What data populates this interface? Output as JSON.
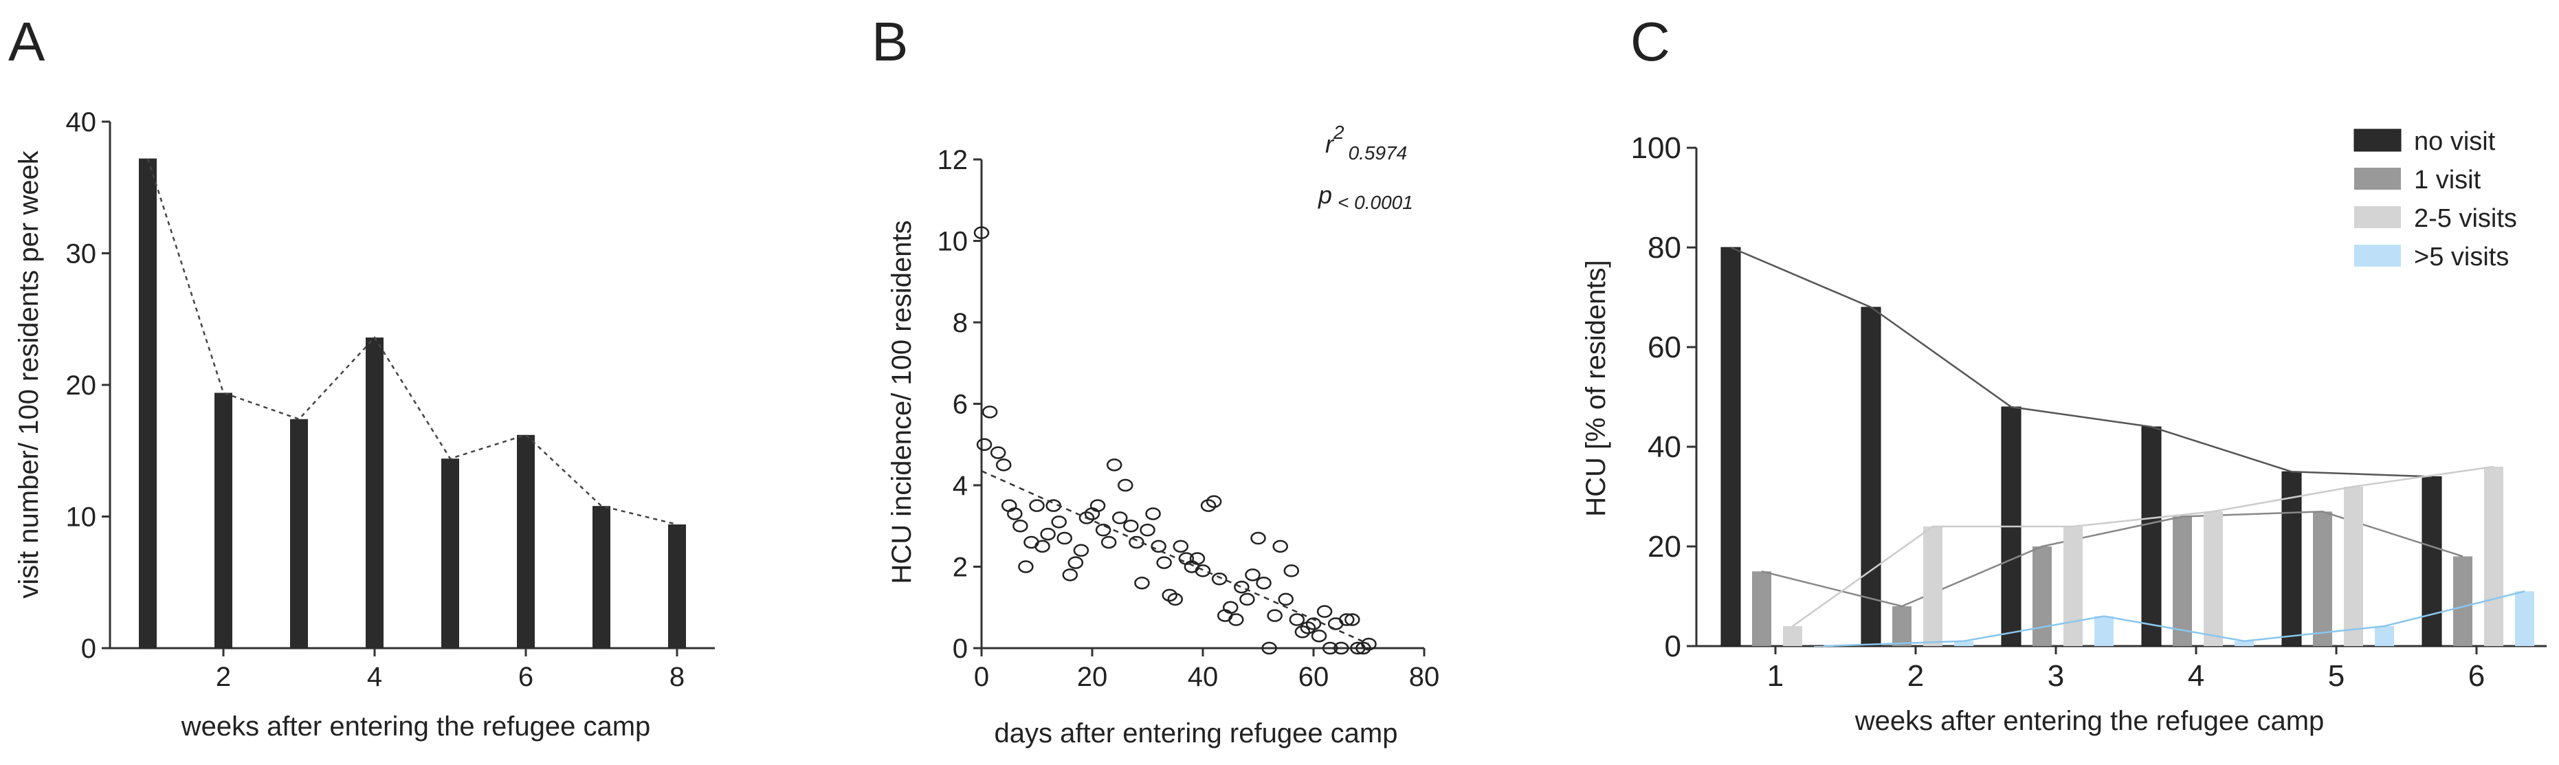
{
  "panels": [
    {
      "letter": "A"
    },
    {
      "letter": "B"
    },
    {
      "letter": "C"
    }
  ],
  "chart_data": [
    {
      "type": "bar",
      "panel": "A",
      "x": [
        1,
        2,
        3,
        4,
        5,
        6,
        7,
        8
      ],
      "values": [
        37.2,
        19.4,
        17.4,
        23.6,
        14.4,
        16.2,
        10.8,
        9.4
      ],
      "connector_line": "dashed",
      "xlabel": "weeks after entering the refugee camp",
      "ylabel": "visit number/ 100 residents per week",
      "xticks": [
        2,
        4,
        6,
        8
      ],
      "yticks": [
        0,
        10,
        20,
        30,
        40
      ],
      "xlim": [
        0.5,
        8.5
      ],
      "ylim": [
        0,
        40
      ],
      "bar_color": "#2b2b2b",
      "grid": false
    },
    {
      "type": "scatter",
      "panel": "B",
      "xlabel": "days after entering refugee camp",
      "ylabel": "HCU incidence/ 100 residents",
      "xticks": [
        0,
        20,
        40,
        60,
        80
      ],
      "yticks": [
        0,
        2,
        4,
        6,
        8,
        10,
        12
      ],
      "xlim": [
        0,
        80
      ],
      "ylim": [
        0,
        12
      ],
      "annotations": {
        "r2_symbol": "r",
        "r2_exp": "2",
        "r2_value": "0.5974",
        "p_symbol": "p",
        "p_value": "< 0.0001"
      },
      "regression": {
        "x": [
          0,
          70
        ],
        "y": [
          4.35,
          0.1
        ],
        "style": "dashed"
      },
      "points": [
        [
          0,
          10.2
        ],
        [
          0.5,
          5.0
        ],
        [
          1.5,
          5.8
        ],
        [
          3,
          4.8
        ],
        [
          4,
          4.5
        ],
        [
          5,
          3.5
        ],
        [
          6,
          3.3
        ],
        [
          7,
          3.0
        ],
        [
          8,
          2.0
        ],
        [
          9,
          2.6
        ],
        [
          10,
          3.5
        ],
        [
          11,
          2.5
        ],
        [
          12,
          2.8
        ],
        [
          13,
          3.5
        ],
        [
          14,
          3.1
        ],
        [
          15,
          2.7
        ],
        [
          16,
          1.8
        ],
        [
          17,
          2.1
        ],
        [
          18,
          2.4
        ],
        [
          19,
          3.2
        ],
        [
          20,
          3.3
        ],
        [
          21,
          3.5
        ],
        [
          22,
          2.9
        ],
        [
          23,
          2.6
        ],
        [
          24,
          4.5
        ],
        [
          25,
          3.2
        ],
        [
          26,
          4.0
        ],
        [
          27,
          3.0
        ],
        [
          28,
          2.6
        ],
        [
          29,
          1.6
        ],
        [
          30,
          2.9
        ],
        [
          31,
          3.3
        ],
        [
          32,
          2.5
        ],
        [
          33,
          2.1
        ],
        [
          34,
          1.3
        ],
        [
          35,
          1.2
        ],
        [
          36,
          2.5
        ],
        [
          37,
          2.2
        ],
        [
          38,
          2.0
        ],
        [
          39,
          2.2
        ],
        [
          40,
          1.9
        ],
        [
          41,
          3.5
        ],
        [
          42,
          3.6
        ],
        [
          43,
          1.7
        ],
        [
          44,
          0.8
        ],
        [
          45,
          1.0
        ],
        [
          46,
          0.7
        ],
        [
          47,
          1.5
        ],
        [
          48,
          1.2
        ],
        [
          49,
          1.8
        ],
        [
          50,
          2.7
        ],
        [
          51,
          1.6
        ],
        [
          52,
          0.0
        ],
        [
          53,
          0.8
        ],
        [
          54,
          2.5
        ],
        [
          55,
          1.2
        ],
        [
          56,
          1.9
        ],
        [
          57,
          0.7
        ],
        [
          58,
          0.4
        ],
        [
          59,
          0.5
        ],
        [
          60,
          0.6
        ],
        [
          61,
          0.3
        ],
        [
          62,
          0.9
        ],
        [
          63,
          0.0
        ],
        [
          64,
          0.6
        ],
        [
          65,
          0.0
        ],
        [
          66,
          0.7
        ],
        [
          67,
          0.7
        ],
        [
          68,
          0.0
        ],
        [
          69,
          0.0
        ],
        [
          70,
          0.1
        ]
      ],
      "grid": false
    },
    {
      "type": "bar",
      "panel": "C",
      "categories": [
        "1",
        "2",
        "3",
        "4",
        "5",
        "6"
      ],
      "xlabel": "weeks after entering the refugee camp",
      "ylabel": "HCU [% of residents]",
      "yticks": [
        0,
        20,
        40,
        60,
        80,
        100
      ],
      "ylim": [
        0,
        100
      ],
      "legend_position": "top-right",
      "series": [
        {
          "name": "no visit",
          "color": "#2b2b2b",
          "line": "#555555",
          "values": [
            80,
            68,
            48,
            44,
            35,
            34
          ]
        },
        {
          "name": "1 visit",
          "color": "#999999",
          "line": "#888888",
          "values": [
            15,
            8,
            20,
            26,
            27,
            18
          ]
        },
        {
          "name": "2-5 visits",
          "color": "#d4d4d4",
          "line": "#cccccc",
          "values": [
            4,
            24,
            24,
            27,
            32,
            36
          ]
        },
        {
          "name": ">5 visits",
          "color": "#bde0f8",
          "line": "#8ac6ee",
          "values": [
            0,
            1,
            6,
            1,
            4,
            11
          ]
        }
      ],
      "grid": false
    }
  ]
}
